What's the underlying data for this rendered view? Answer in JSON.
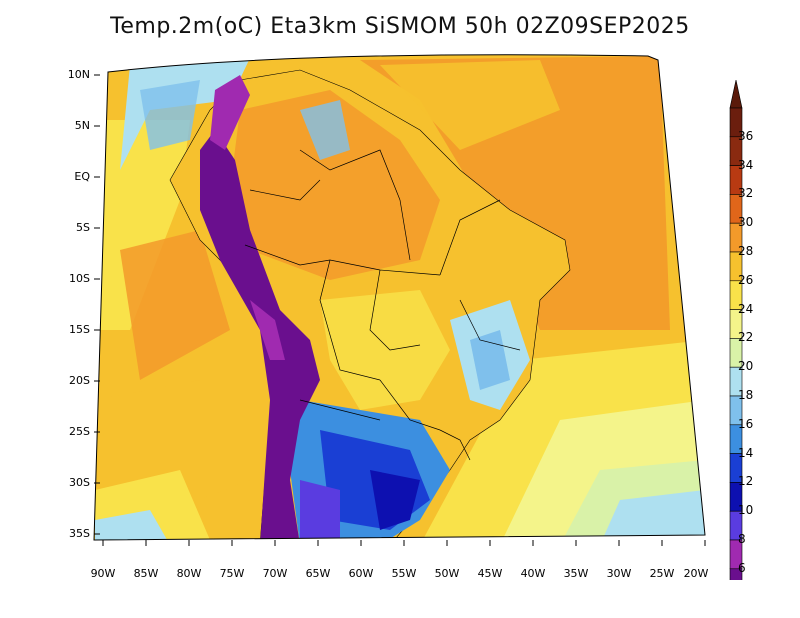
{
  "title": "Temp.2m(oC) Eta3km SiSMOM 50h 02Z09SEP2025",
  "lat_labels": [
    "10N",
    "5N",
    "EQ",
    "5S",
    "10S",
    "15S",
    "20S",
    "25S",
    "30S",
    "35S"
  ],
  "lon_labels": [
    "90W",
    "85W",
    "80W",
    "75W",
    "70W",
    "65W",
    "60W",
    "55W",
    "50W",
    "45W",
    "40W",
    "35W",
    "30W",
    "25W",
    "20W"
  ],
  "colorbar": {
    "levels": [
      "36",
      "34",
      "32",
      "30",
      "28",
      "26",
      "24",
      "22",
      "20",
      "18",
      "16",
      "14",
      "12",
      "10",
      "8",
      "6"
    ],
    "colors": [
      "#6b1e0e",
      "#8a2a10",
      "#b83a12",
      "#e0661a",
      "#f39a2a",
      "#f6c12e",
      "#f9e24a",
      "#f4f48a",
      "#d9f2a8",
      "#aee0f0",
      "#7fc0ec",
      "#3c8fe0",
      "#1a3fd4",
      "#0d10b0",
      "#5a3ce0",
      "#a02ab0",
      "#6a0f8e"
    ],
    "top_color": "#5a1a0a",
    "bottom_color": "#4a0a6e"
  },
  "field_colors": {
    "ocean_warm": "#f39a2a",
    "ocean_mild": "#f6c12e",
    "ocean_cool": "#f9e24a",
    "ocean_cold": "#aee0f0",
    "land_hot": "#f39a2a",
    "land_warm": "#f6c12e",
    "highland_cool": "#7fc0ec",
    "andes": "#6a0f8e",
    "south_cold": "#1a3fd4",
    "south_mid": "#3c8fe0",
    "boundaries": "#000000"
  }
}
